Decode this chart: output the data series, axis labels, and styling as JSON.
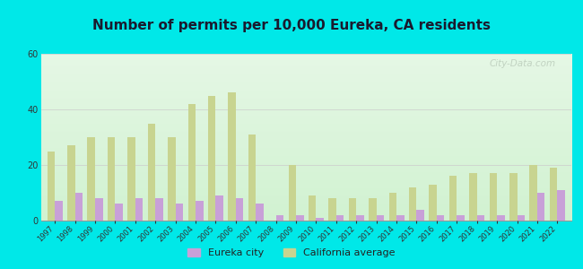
{
  "title": "Number of permits per 10,000 Eureka, CA residents",
  "years": [
    1997,
    1998,
    1999,
    2000,
    2001,
    2002,
    2003,
    2004,
    2005,
    2006,
    2007,
    2008,
    2009,
    2010,
    2011,
    2012,
    2013,
    2014,
    2015,
    2016,
    2017,
    2018,
    2019,
    2020,
    2021,
    2022
  ],
  "eureka": [
    7,
    10,
    8,
    6,
    8,
    8,
    6,
    7,
    9,
    8,
    6,
    2,
    2,
    1,
    2,
    2,
    2,
    2,
    4,
    2,
    2,
    2,
    2,
    2,
    10,
    11
  ],
  "california": [
    25,
    27,
    30,
    30,
    30,
    35,
    30,
    42,
    45,
    46,
    31,
    0,
    20,
    9,
    8,
    8,
    8,
    10,
    12,
    13,
    16,
    17,
    17,
    17,
    20,
    19
  ],
  "eureka_color": "#c8a0d8",
  "california_color": "#c8d490",
  "background_outer": "#00e8e8",
  "ylim": [
    0,
    60
  ],
  "yticks": [
    0,
    20,
    40,
    60
  ],
  "title_fontsize": 11,
  "bar_width": 0.38,
  "legend_eureka": "Eureka city",
  "legend_california": "California average",
  "watermark": "City-Data.com",
  "grid_color": "#cccccc"
}
